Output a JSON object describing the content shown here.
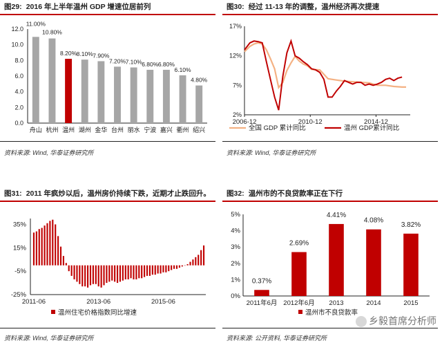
{
  "panels": [
    {
      "num": "图29:",
      "title": "2016 年上半年温州 GDP 增速位居前列",
      "source": "资料来源: Wind, 华泰证券研究所"
    },
    {
      "num": "图30:",
      "title": "经过 11-13 年的调整，温州经济再次提速",
      "source": "资料来源: Wind, 华泰证券研究所"
    },
    {
      "num": "图31:",
      "title": "2011 年疯炒以后，温州房价持续下跌，近期才止跌回升。",
      "source": "资料来源: Wind, 华泰证券研究所"
    },
    {
      "num": "图32:",
      "title": "温州市的不良贷款率正在下行",
      "source": "资料来源: 公开资料, 华泰证券研究所"
    }
  ],
  "watermark": {
    "text": "乡毅首席分析师",
    "icon": "wechat-icon"
  },
  "colors": {
    "accent": "#c00000",
    "gray": "#a6a6a6",
    "light": "#f4b183"
  },
  "chart_data": [
    {
      "type": "bar",
      "categories": [
        "舟山",
        "杭州",
        "温州",
        "湖州",
        "金华",
        "台州",
        "丽水",
        "宁波",
        "嘉兴",
        "衢州",
        "绍兴"
      ],
      "values": [
        11.0,
        10.8,
        8.2,
        8.1,
        7.9,
        7.2,
        7.1,
        6.8,
        6.8,
        6.1,
        4.8
      ],
      "labels": [
        "11.00%",
        "10.80%",
        "8.20%",
        "8.10%",
        "7.90%",
        "7.20%",
        "7.10%",
        "6.80%",
        "6.80%",
        "6.10%",
        "4.80%"
      ],
      "highlight": "温州",
      "yticks": [
        "0.0",
        "2.0",
        "4.0",
        "6.0",
        "8.0",
        "10.0",
        "12.0"
      ],
      "ylim": [
        0,
        12
      ],
      "title": "",
      "xlabel": "",
      "ylabel": ""
    },
    {
      "type": "line",
      "xticks": [
        "2006-12",
        "2010-12",
        "2014-12"
      ],
      "xtick_values": [
        2006.92,
        2010.92,
        2014.92
      ],
      "yticks": [
        "2%",
        "7%",
        "12%",
        "17%"
      ],
      "ylim": [
        2,
        17
      ],
      "xlim": [
        2006.92,
        2017.0
      ],
      "series": [
        {
          "name": "全国 GDP 累计同比",
          "color": "#f4b183",
          "x": [
            2006.92,
            2007.25,
            2007.5,
            2007.75,
            2008.0,
            2008.25,
            2008.5,
            2008.75,
            2009.0,
            2009.25,
            2009.5,
            2009.75,
            2010.0,
            2010.25,
            2010.5,
            2010.75,
            2011.0,
            2011.5,
            2012.0,
            2012.5,
            2013.0,
            2013.5,
            2014.0,
            2014.5,
            2015.0,
            2015.5,
            2016.0,
            2016.5,
            2016.75
          ],
          "y": [
            12.7,
            13.6,
            14.0,
            14.2,
            14.0,
            13.0,
            11.5,
            9.8,
            6.6,
            7.5,
            9.5,
            10.8,
            11.9,
            11.1,
            10.6,
            10.3,
            9.7,
            9.6,
            8.1,
            7.9,
            7.7,
            7.6,
            7.5,
            7.4,
            7.0,
            7.0,
            6.8,
            6.7,
            6.7
          ]
        },
        {
          "name": "温州 GDP累计同比",
          "color": "#c00000",
          "x": [
            2006.92,
            2007.25,
            2007.5,
            2007.75,
            2008.0,
            2008.25,
            2008.5,
            2008.75,
            2009.0,
            2009.25,
            2009.5,
            2009.75,
            2010.0,
            2010.25,
            2010.5,
            2010.75,
            2011.0,
            2011.25,
            2011.5,
            2011.75,
            2012.0,
            2012.25,
            2012.5,
            2012.75,
            2013.0,
            2013.25,
            2013.5,
            2013.75,
            2014.0,
            2014.25,
            2014.5,
            2014.75,
            2015.0,
            2015.25,
            2015.5,
            2015.75,
            2016.0,
            2016.25,
            2016.5
          ],
          "y": [
            13.0,
            14.2,
            14.5,
            14.4,
            14.2,
            11.0,
            8.0,
            5.0,
            2.8,
            8.5,
            12.5,
            14.5,
            12.0,
            11.6,
            11.0,
            10.5,
            9.8,
            9.6,
            9.2,
            8.0,
            5.0,
            5.0,
            6.0,
            6.8,
            7.8,
            7.5,
            7.2,
            7.5,
            7.5,
            7.0,
            7.2,
            7.0,
            7.2,
            7.5,
            8.0,
            8.2,
            7.8,
            8.2,
            8.4
          ]
        }
      ],
      "title": "",
      "xlabel": "",
      "ylabel": ""
    },
    {
      "type": "bar",
      "series_name": "温州住宅价格指数同比增速",
      "color": "#c00000",
      "xticks": [
        "2011-06",
        "2013-06",
        "2015-06"
      ],
      "xtick_index": [
        0,
        24,
        48
      ],
      "yticks": [
        "-25%",
        "-5%",
        "15%",
        "35%"
      ],
      "ylim": [
        -25,
        40
      ],
      "values": [
        28,
        29,
        31,
        32,
        34,
        36,
        38,
        39,
        35,
        25,
        16,
        8,
        2,
        -5,
        -9,
        -12,
        -14,
        -16,
        -18,
        -18,
        -19,
        -17,
        -16,
        -16,
        -18,
        -19,
        -17,
        -15,
        -14,
        -13,
        -14,
        -15,
        -14,
        -13,
        -12,
        -12,
        -11,
        -12,
        -12,
        -11,
        -11,
        -10,
        -9,
        -9,
        -8,
        -8,
        -7,
        -7,
        -6,
        -6,
        -5,
        -4,
        -3,
        -3,
        -2,
        -1,
        0,
        1,
        3,
        5,
        7,
        9,
        13,
        17
      ],
      "title": "",
      "xlabel": "",
      "ylabel": ""
    },
    {
      "type": "bar",
      "series_name": "温州市不良贷款率",
      "color": "#c00000",
      "categories": [
        "2011年6月",
        "2012年6月",
        "2013",
        "2014",
        "2015"
      ],
      "values": [
        0.37,
        2.69,
        4.41,
        4.08,
        3.82
      ],
      "labels": [
        "0.37%",
        "2.69%",
        "4.41%",
        "4.08%",
        "3.82%"
      ],
      "yticks": [
        "0%",
        "1%",
        "2%",
        "3%",
        "4%",
        "5%"
      ],
      "ylim": [
        0,
        5
      ],
      "title": "",
      "xlabel": "",
      "ylabel": ""
    }
  ]
}
